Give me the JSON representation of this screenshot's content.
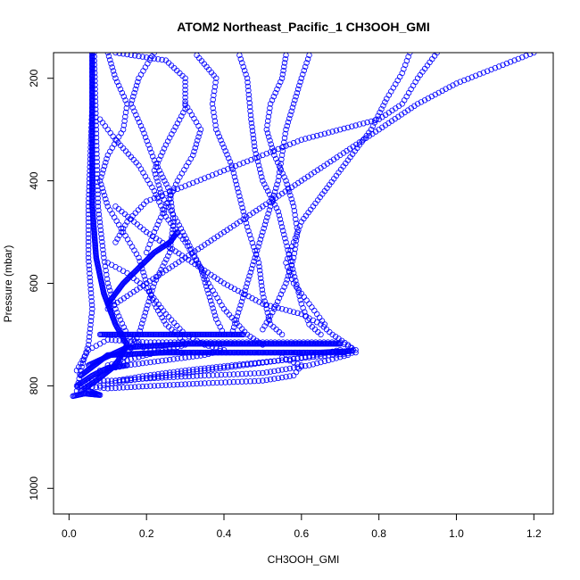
{
  "chart_data": {
    "type": "scatter",
    "title": "ATOM2 Northeast_Pacific_1 CH3OOH_GMI",
    "xlabel": "CH3OOH_GMI",
    "ylabel": "Pressure (mbar)",
    "xlim": [
      -0.04,
      1.25
    ],
    "ylim": [
      1050,
      150
    ],
    "y_inverted": true,
    "xticks": [
      0.0,
      0.2,
      0.4,
      0.6,
      0.8,
      1.0,
      1.2
    ],
    "xtick_labels": [
      "0.0",
      "0.2",
      "0.4",
      "0.6",
      "0.8",
      "1.0",
      "1.2"
    ],
    "yticks": [
      200,
      400,
      600,
      800,
      1000
    ],
    "ytick_labels": [
      "200",
      "400",
      "600",
      "800",
      "1000"
    ],
    "marker": "open-circle",
    "color": "#0000ff",
    "grid": false,
    "series": [
      {
        "values": [
          [
            0.06,
            150
          ],
          [
            0.06,
            250
          ],
          [
            0.055,
            350
          ],
          [
            0.05,
            450
          ],
          [
            0.05,
            550
          ],
          [
            0.06,
            650
          ],
          [
            0.05,
            720
          ],
          [
            0.03,
            770
          ],
          [
            0.02,
            810
          ]
        ]
      },
      {
        "values": [
          [
            0.065,
            150
          ],
          [
            0.07,
            300
          ],
          [
            0.075,
            450
          ],
          [
            0.09,
            550
          ],
          [
            0.1,
            600
          ],
          [
            0.12,
            650
          ],
          [
            0.15,
            700
          ],
          [
            0.2,
            730
          ],
          [
            0.3,
            735
          ],
          [
            0.5,
            735
          ],
          [
            0.7,
            735
          ],
          [
            0.74,
            730
          ],
          [
            0.7,
            715
          ],
          [
            0.5,
            715
          ],
          [
            0.2,
            715
          ],
          [
            0.1,
            710
          ],
          [
            0.05,
            730
          ],
          [
            0.02,
            770
          ]
        ]
      },
      {
        "values": [
          [
            0.1,
            150
          ],
          [
            0.12,
            200
          ],
          [
            0.15,
            250
          ],
          [
            0.14,
            300
          ],
          [
            0.1,
            350
          ],
          [
            0.08,
            400
          ],
          [
            0.1,
            450
          ],
          [
            0.14,
            500
          ],
          [
            0.18,
            550
          ],
          [
            0.2,
            600
          ],
          [
            0.22,
            640
          ],
          [
            0.25,
            680
          ],
          [
            0.28,
            700
          ],
          [
            0.3,
            720
          ],
          [
            0.2,
            740
          ],
          [
            0.1,
            760
          ]
        ]
      },
      {
        "values": [
          [
            0.12,
            150
          ],
          [
            0.25,
            165
          ],
          [
            0.3,
            200
          ],
          [
            0.3,
            260
          ],
          [
            0.25,
            330
          ],
          [
            0.22,
            380
          ],
          [
            0.24,
            430
          ],
          [
            0.28,
            480
          ],
          [
            0.32,
            540
          ],
          [
            0.36,
            600
          ],
          [
            0.4,
            650
          ],
          [
            0.46,
            700
          ],
          [
            0.5,
            720
          ]
        ]
      },
      {
        "values": [
          [
            0.22,
            150
          ],
          [
            0.18,
            200
          ],
          [
            0.16,
            250
          ],
          [
            0.19,
            300
          ],
          [
            0.22,
            360
          ],
          [
            0.26,
            420
          ],
          [
            0.27,
            480
          ],
          [
            0.26,
            540
          ],
          [
            0.22,
            600
          ],
          [
            0.2,
            650
          ],
          [
            0.18,
            700
          ],
          [
            0.15,
            740
          ],
          [
            0.1,
            770
          ]
        ]
      },
      {
        "values": [
          [
            0.33,
            155
          ],
          [
            0.38,
            200
          ],
          [
            0.37,
            250
          ],
          [
            0.38,
            300
          ],
          [
            0.42,
            370
          ],
          [
            0.44,
            430
          ],
          [
            0.46,
            490
          ],
          [
            0.49,
            560
          ],
          [
            0.5,
            620
          ],
          [
            0.52,
            680
          ],
          [
            0.55,
            700
          ]
        ]
      },
      {
        "values": [
          [
            0.44,
            155
          ],
          [
            0.46,
            200
          ],
          [
            0.47,
            280
          ],
          [
            0.48,
            340
          ],
          [
            0.5,
            400
          ],
          [
            0.54,
            460
          ],
          [
            0.56,
            520
          ],
          [
            0.58,
            580
          ],
          [
            0.6,
            640
          ],
          [
            0.62,
            680
          ],
          [
            0.65,
            700
          ]
        ]
      },
      {
        "values": [
          [
            0.56,
            155
          ],
          [
            0.55,
            200
          ],
          [
            0.52,
            250
          ],
          [
            0.51,
            300
          ],
          [
            0.53,
            350
          ],
          [
            0.56,
            400
          ],
          [
            0.58,
            450
          ],
          [
            0.59,
            500
          ],
          [
            0.58,
            550
          ],
          [
            0.56,
            600
          ],
          [
            0.53,
            650
          ],
          [
            0.5,
            690
          ]
        ]
      },
      {
        "values": [
          [
            0.62,
            155
          ],
          [
            0.6,
            200
          ],
          [
            0.58,
            250
          ],
          [
            0.56,
            300
          ],
          [
            0.55,
            350
          ],
          [
            0.54,
            400
          ],
          [
            0.52,
            450
          ],
          [
            0.5,
            500
          ],
          [
            0.48,
            550
          ],
          [
            0.46,
            600
          ],
          [
            0.44,
            650
          ],
          [
            0.42,
            700
          ]
        ]
      },
      {
        "values": [
          [
            0.88,
            150
          ],
          [
            0.86,
            190
          ],
          [
            0.82,
            240
          ],
          [
            0.78,
            300
          ],
          [
            0.72,
            360
          ],
          [
            0.66,
            420
          ],
          [
            0.6,
            480
          ],
          [
            0.58,
            520
          ],
          [
            0.56,
            560
          ],
          [
            0.58,
            600
          ],
          [
            0.62,
            640
          ],
          [
            0.66,
            680
          ]
        ]
      },
      {
        "values": [
          [
            0.95,
            150
          ],
          [
            0.9,
            200
          ],
          [
            0.86,
            250
          ],
          [
            0.8,
            280
          ],
          [
            0.7,
            300
          ],
          [
            0.6,
            320
          ],
          [
            0.5,
            350
          ],
          [
            0.4,
            380
          ],
          [
            0.3,
            410
          ],
          [
            0.2,
            440
          ],
          [
            0.15,
            480
          ],
          [
            0.12,
            520
          ]
        ]
      },
      {
        "values": [
          [
            1.2,
            150
          ],
          [
            1.1,
            180
          ],
          [
            1.0,
            210
          ],
          [
            0.9,
            250
          ],
          [
            0.8,
            300
          ],
          [
            0.7,
            350
          ],
          [
            0.6,
            400
          ],
          [
            0.5,
            450
          ],
          [
            0.4,
            500
          ],
          [
            0.3,
            550
          ],
          [
            0.2,
            600
          ],
          [
            0.1,
            650
          ]
        ]
      },
      {
        "values": [
          [
            0.12,
            450
          ],
          [
            0.2,
            500
          ],
          [
            0.3,
            550
          ],
          [
            0.4,
            600
          ],
          [
            0.5,
            640
          ],
          [
            0.6,
            660
          ],
          [
            0.65,
            680
          ],
          [
            0.68,
            700
          ],
          [
            0.72,
            720
          ],
          [
            0.74,
            735
          ],
          [
            0.68,
            740
          ],
          [
            0.55,
            750
          ],
          [
            0.42,
            760
          ],
          [
            0.3,
            770
          ],
          [
            0.2,
            780
          ],
          [
            0.12,
            790
          ]
        ]
      },
      {
        "values": [
          [
            0.05,
            790
          ],
          [
            0.12,
            790
          ],
          [
            0.22,
            785
          ],
          [
            0.35,
            780
          ],
          [
            0.5,
            775
          ],
          [
            0.62,
            760
          ],
          [
            0.72,
            740
          ],
          [
            0.7,
            730
          ],
          [
            0.6,
            745
          ],
          [
            0.45,
            760
          ],
          [
            0.3,
            775
          ],
          [
            0.15,
            790
          ],
          [
            0.08,
            800
          ]
        ]
      },
      {
        "values": [
          [
            0.03,
            800
          ],
          [
            0.1,
            805
          ],
          [
            0.22,
            800
          ],
          [
            0.35,
            795
          ],
          [
            0.5,
            790
          ],
          [
            0.58,
            780
          ],
          [
            0.6,
            760
          ],
          [
            0.55,
            745
          ]
        ]
      },
      {
        "values": [
          [
            0.1,
            560
          ],
          [
            0.15,
            580
          ],
          [
            0.2,
            610
          ],
          [
            0.25,
            660
          ],
          [
            0.3,
            700
          ],
          [
            0.35,
            720
          ],
          [
            0.4,
            730
          ],
          [
            0.35,
            740
          ],
          [
            0.25,
            750
          ],
          [
            0.15,
            760
          ],
          [
            0.08,
            770
          ]
        ]
      },
      {
        "values": [
          [
            0.08,
            280
          ],
          [
            0.12,
            320
          ],
          [
            0.18,
            370
          ],
          [
            0.22,
            420
          ],
          [
            0.25,
            470
          ],
          [
            0.3,
            520
          ],
          [
            0.34,
            570
          ],
          [
            0.36,
            620
          ],
          [
            0.38,
            670
          ],
          [
            0.4,
            700
          ]
        ]
      },
      {
        "values": [
          [
            0.3,
            250
          ],
          [
            0.34,
            300
          ],
          [
            0.32,
            350
          ],
          [
            0.28,
            400
          ],
          [
            0.25,
            450
          ],
          [
            0.22,
            500
          ],
          [
            0.2,
            540
          ]
        ]
      }
    ],
    "dense_segments": [
      {
        "values": [
          [
            0.06,
            150
          ],
          [
            0.06,
            300
          ],
          [
            0.06,
            450
          ],
          [
            0.07,
            550
          ],
          [
            0.09,
            620
          ],
          [
            0.12,
            680
          ],
          [
            0.15,
            720
          ],
          [
            0.12,
            760
          ],
          [
            0.07,
            790
          ],
          [
            0.03,
            810
          ]
        ]
      },
      {
        "values": [
          [
            0.03,
            780
          ],
          [
            0.1,
            740
          ],
          [
            0.25,
            735
          ],
          [
            0.45,
            735
          ],
          [
            0.65,
            735
          ],
          [
            0.73,
            732
          ]
        ]
      },
      {
        "values": [
          [
            0.05,
            760
          ],
          [
            0.15,
            725
          ],
          [
            0.3,
            718
          ],
          [
            0.5,
            718
          ],
          [
            0.7,
            718
          ]
        ]
      },
      {
        "values": [
          [
            0.08,
            700
          ],
          [
            0.2,
            700
          ],
          [
            0.35,
            700
          ],
          [
            0.45,
            700
          ]
        ]
      },
      {
        "values": [
          [
            0.1,
            640
          ],
          [
            0.14,
            600
          ],
          [
            0.18,
            570
          ],
          [
            0.22,
            540
          ],
          [
            0.26,
            520
          ],
          [
            0.28,
            500
          ]
        ]
      },
      {
        "values": [
          [
            0.02,
            800
          ],
          [
            0.06,
            780
          ],
          [
            0.1,
            765
          ],
          [
            0.15,
            760
          ]
        ]
      },
      {
        "values": [
          [
            0.01,
            820
          ],
          [
            0.04,
            815
          ],
          [
            0.08,
            818
          ],
          [
            0.05,
            810
          ]
        ]
      }
    ]
  }
}
